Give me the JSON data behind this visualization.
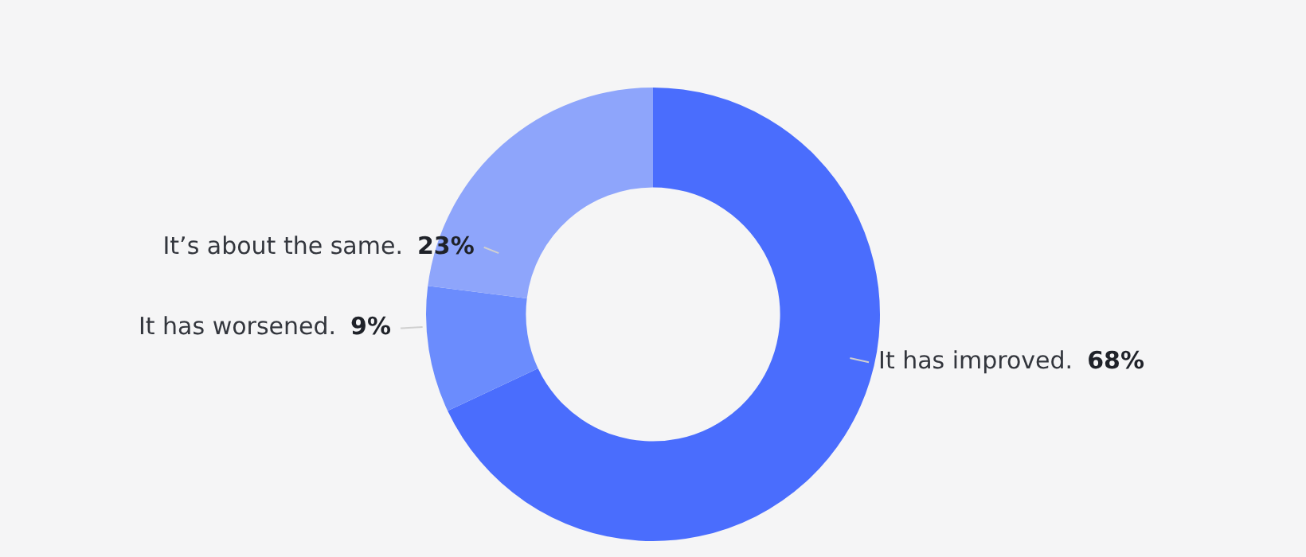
{
  "chart_data": {
    "type": "donut",
    "categories": [
      "It has improved.",
      "It has worsened.",
      "It’s about the same."
    ],
    "values": [
      68,
      9,
      23
    ],
    "colors": [
      "#4a6dfd",
      "#6b8cfd",
      "#8ea5fb"
    ],
    "value_labels": [
      "68%",
      "9%",
      "23%"
    ],
    "legend": false
  }
}
